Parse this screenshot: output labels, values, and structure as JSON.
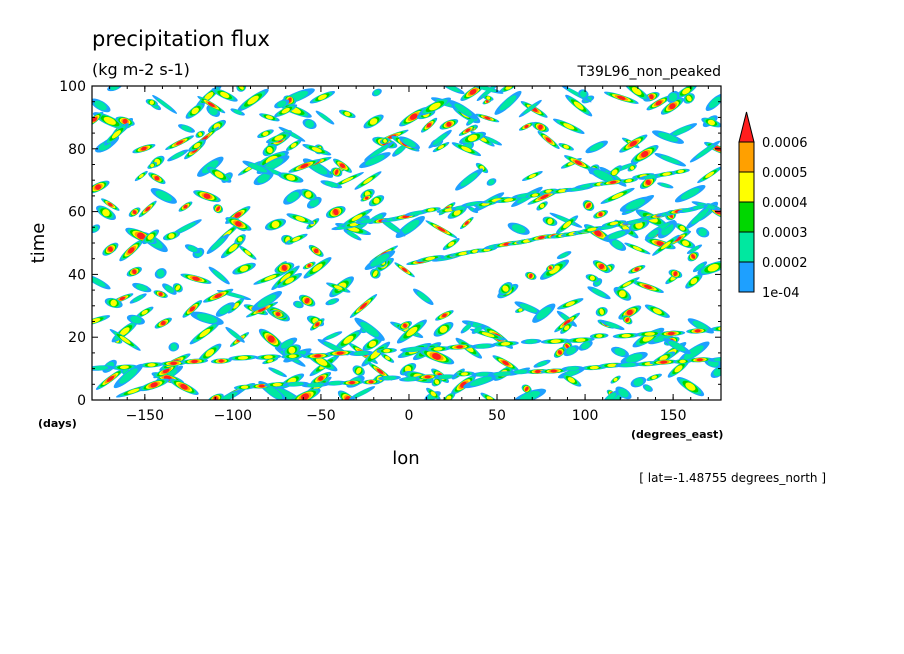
{
  "chart_data": {
    "type": "heatmap",
    "title": "precipitation flux",
    "units": "(kg m-2 s-1)",
    "run_label": "T39L96_non_peaked",
    "xlabel": "lon",
    "x_unit": "(degrees_east)",
    "ylabel": "time",
    "y_unit": "(days)",
    "xlim": [
      -180,
      177.1875
    ],
    "ylim": [
      0,
      100
    ],
    "xticks": [
      -150,
      -100,
      -50,
      0,
      50,
      100,
      150
    ],
    "yticks": [
      0,
      20,
      40,
      60,
      80,
      100
    ],
    "slice_note": "[ lat=-1.48755 degrees_north ]",
    "levels": [
      {
        "label": "1e-04",
        "min": 0.0001,
        "max": 0.0002,
        "color": "#1ea0ff"
      },
      {
        "label": "0.0002",
        "min": 0.0002,
        "max": 0.0003,
        "color": "#00e8a0"
      },
      {
        "label": "0.0003",
        "min": 0.0003,
        "max": 0.0004,
        "color": "#00d700"
      },
      {
        "label": "0.0004",
        "min": 0.0004,
        "max": 0.0005,
        "color": "#ffff00"
      },
      {
        "label": "0.0005",
        "min": 0.0005,
        "max": 0.0006,
        "color": "#ffa000"
      },
      {
        "label": "0.0006",
        "min": 0.0006,
        "max": null,
        "color": "#ff1e1e"
      }
    ]
  }
}
